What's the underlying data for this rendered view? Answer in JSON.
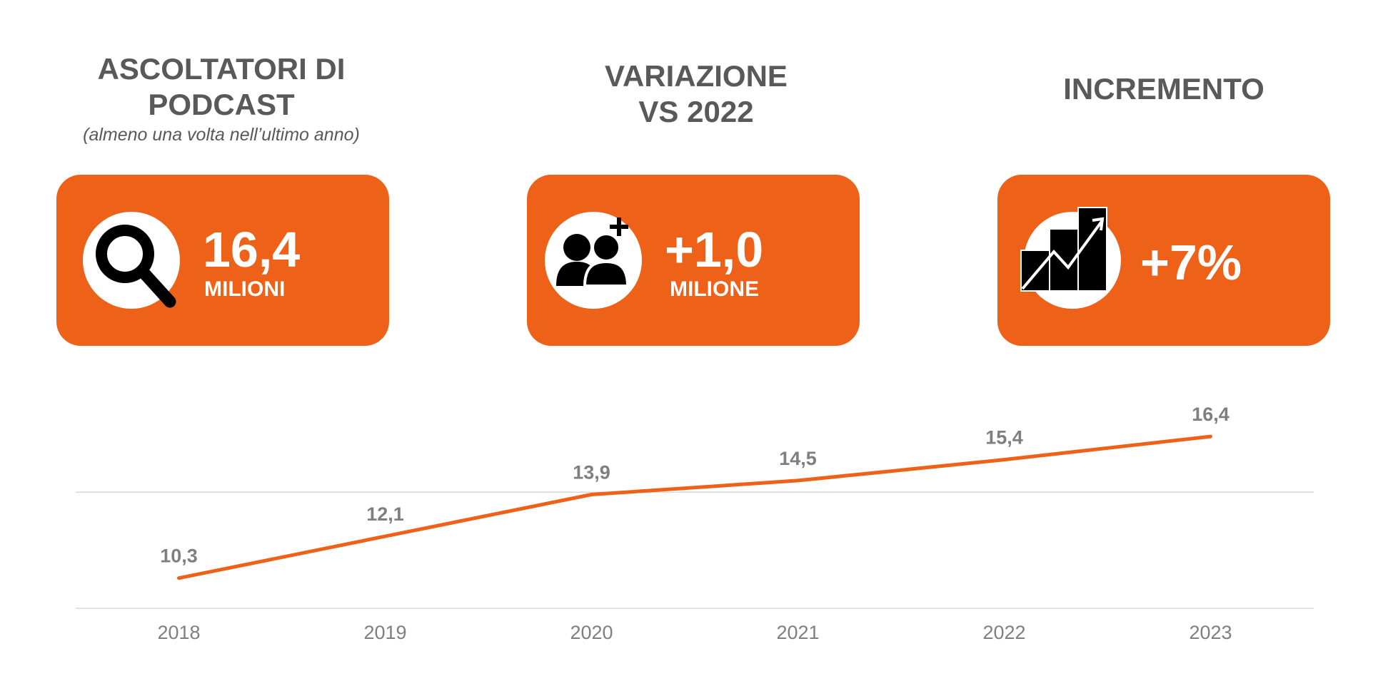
{
  "kpis": [
    {
      "title_line1": "ASCOLTATORI DI",
      "title_line2": "PODCAST",
      "subtitle": "(almeno una volta nell’ultimo anno)",
      "value": "16,4",
      "unit": "MILIONI",
      "icon": "magnifier-icon"
    },
    {
      "title_line1": "VARIAZIONE",
      "title_line2": "VS 2022",
      "value": "+1,0",
      "unit": "MILIONE",
      "icon": "add-users-icon"
    },
    {
      "title_line1": "INCREMENTO",
      "value": "+7%",
      "icon": "growth-chart-icon"
    }
  ],
  "colors": {
    "accent": "#ee6119",
    "text": "#595959",
    "label": "#7f7f7f",
    "grid": "#d9d9d9"
  },
  "chart_data": {
    "type": "line",
    "categories": [
      "2018",
      "2019",
      "2020",
      "2021",
      "2022",
      "2023"
    ],
    "series": [
      {
        "name": "Ascoltatori di podcast (milioni)",
        "values": [
          10.3,
          12.1,
          13.9,
          14.5,
          15.4,
          16.4
        ],
        "labels": [
          "10,3",
          "12,1",
          "13,9",
          "14,5",
          "15,4",
          "16,4"
        ]
      }
    ],
    "ylim": [
      9,
      18
    ],
    "gridlines": [
      9,
      14
    ],
    "title": "",
    "xlabel": "",
    "ylabel": ""
  }
}
